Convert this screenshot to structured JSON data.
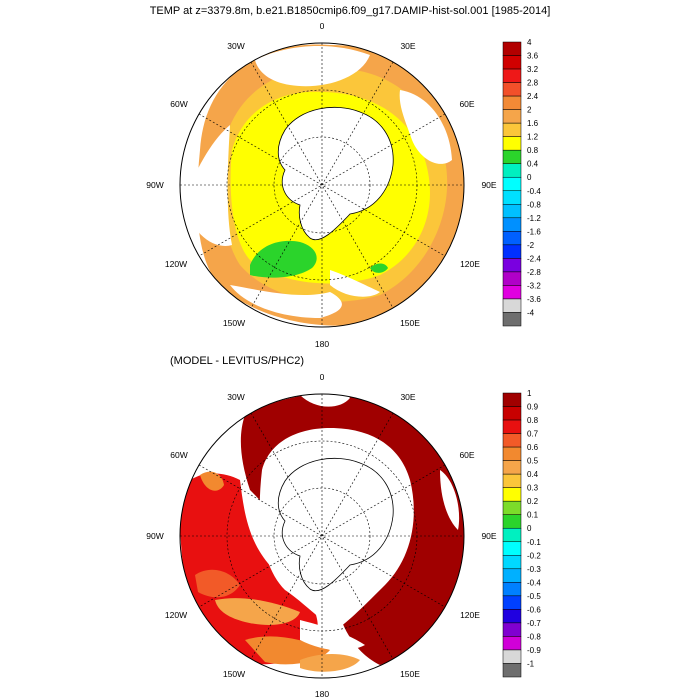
{
  "title": "TEMP at z=3379.8m, b.e21.B1850cmip6.f09_g17.DAMIP-hist-sol.001 [1985-2014]",
  "panel1": {
    "lon_labels": [
      "0",
      "30E",
      "60E",
      "90E",
      "120E",
      "150E",
      "180",
      "150W",
      "120W",
      "90W",
      "60W",
      "30W"
    ],
    "colorbar": {
      "labels": [
        "4",
        "3.6",
        "3.2",
        "2.8",
        "2.4",
        "2",
        "1.6",
        "1.2",
        "0.8",
        "0.4",
        "0",
        "-0.4",
        "-0.8",
        "-1.2",
        "-1.6",
        "-2",
        "-2.4",
        "-2.8",
        "-3.2",
        "-3.6",
        "-4"
      ],
      "colors": [
        "#b20000",
        "#d00000",
        "#ee1818",
        "#f2502a",
        "#f28a36",
        "#f5a54a",
        "#fbc63a",
        "#ffff00",
        "#2bd42b",
        "#00f0c0",
        "#00ffff",
        "#00e0ff",
        "#00c0ff",
        "#0090ff",
        "#0060ff",
        "#0030ff",
        "#7a00e0",
        "#b000c8",
        "#e000e0",
        "#d8d8d8",
        "#6e6e6e"
      ]
    }
  },
  "panel2": {
    "title": "(MODEL - LEVITUS/PHC2)",
    "lon_labels": [
      "0",
      "30E",
      "60E",
      "90E",
      "120E",
      "150E",
      "180",
      "150W",
      "120W",
      "90W",
      "60W",
      "30W"
    ],
    "colorbar": {
      "labels": [
        "1",
        "0.9",
        "0.8",
        "0.7",
        "0.6",
        "0.5",
        "0.4",
        "0.3",
        "0.2",
        "0.1",
        "0",
        "-0.1",
        "-0.2",
        "-0.3",
        "-0.4",
        "-0.5",
        "-0.6",
        "-0.7",
        "-0.8",
        "-0.9",
        "-1"
      ],
      "colors": [
        "#a00000",
        "#c80000",
        "#e81010",
        "#f25a28",
        "#f2892f",
        "#f5a54a",
        "#fbc63a",
        "#ffff00",
        "#7cdc2a",
        "#2bd42b",
        "#00f0c0",
        "#00ffff",
        "#00d8ff",
        "#00b0ff",
        "#0080ff",
        "#0040ff",
        "#2000e0",
        "#8000d0",
        "#d000d8",
        "#d8d8d8",
        "#6e6e6e"
      ]
    }
  }
}
